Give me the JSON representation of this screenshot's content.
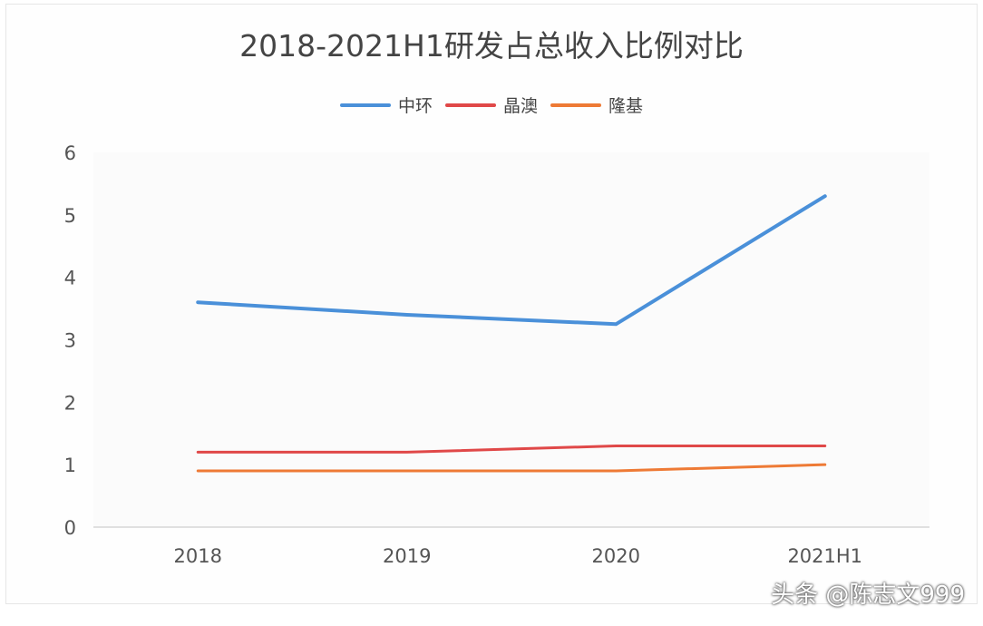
{
  "chart_data": {
    "type": "line",
    "title": "2018-2021H1研发占总收入比例对比",
    "categories": [
      "2018",
      "2019",
      "2020",
      "2021H1"
    ],
    "series": [
      {
        "name": "中环",
        "color": "#4a90d9",
        "values": [
          3.6,
          3.4,
          3.25,
          5.3
        ]
      },
      {
        "name": "晶澳",
        "color": "#e04848",
        "values": [
          1.2,
          1.2,
          1.3,
          1.3
        ]
      },
      {
        "name": "隆基",
        "color": "#ee7a35",
        "values": [
          0.9,
          0.9,
          0.9,
          1.0
        ]
      }
    ],
    "ylim": [
      0,
      6
    ],
    "yticks": [
      "0",
      "1",
      "2",
      "3",
      "4",
      "5",
      "6"
    ],
    "xlabel": "",
    "ylabel": "",
    "grid": false,
    "legend": "top"
  },
  "watermark": "头条 @陈志文999"
}
